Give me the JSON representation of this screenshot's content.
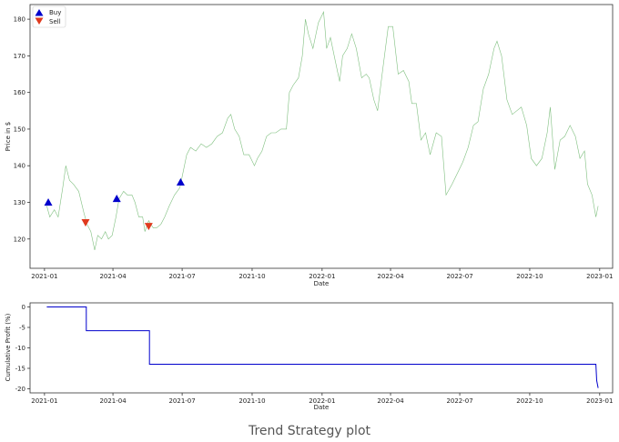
{
  "caption": "Trend Strategy plot",
  "chart_data": [
    {
      "type": "line",
      "xlabel": "Date",
      "ylabel": "Price in $",
      "xlim": [
        "2020-12-13",
        "2023-01-18"
      ],
      "ylim": [
        112,
        184
      ],
      "x_ticks": [
        "2021-01-01",
        "2021-04-01",
        "2021-07-01",
        "2021-10-01",
        "2022-01-01",
        "2022-04-01",
        "2022-07-01",
        "2022-10-01",
        "2023-01-01"
      ],
      "x_tick_labels": [
        "2021-01",
        "2021-04",
        "2021-07",
        "2021-10",
        "2022-01",
        "2022-04",
        "2022-07",
        "2022-10",
        "2023-01"
      ],
      "y_ticks": [
        120,
        130,
        140,
        150,
        160,
        170,
        180
      ],
      "line_color": "#7fbf7f",
      "legend_position": "upper-left",
      "series": [
        {
          "name": "Price",
          "points": [
            [
              "2021-01-04",
              129
            ],
            [
              "2021-01-08",
              126
            ],
            [
              "2021-01-14",
              128
            ],
            [
              "2021-01-19",
              126
            ],
            [
              "2021-01-25",
              134
            ],
            [
              "2021-01-29",
              140
            ],
            [
              "2021-02-03",
              136
            ],
            [
              "2021-02-08",
              135
            ],
            [
              "2021-02-15",
              133
            ],
            [
              "2021-02-22",
              127
            ],
            [
              "2021-02-26",
              124
            ],
            [
              "2021-03-03",
              122
            ],
            [
              "2021-03-08",
              117
            ],
            [
              "2021-03-12",
              121
            ],
            [
              "2021-03-17",
              120
            ],
            [
              "2021-03-22",
              122
            ],
            [
              "2021-03-26",
              120
            ],
            [
              "2021-03-31",
              121
            ],
            [
              "2021-04-05",
              126
            ],
            [
              "2021-04-09",
              131
            ],
            [
              "2021-04-15",
              133
            ],
            [
              "2021-04-20",
              132
            ],
            [
              "2021-04-26",
              132
            ],
            [
              "2021-04-30",
              130
            ],
            [
              "2021-05-05",
              126
            ],
            [
              "2021-05-10",
              126
            ],
            [
              "2021-05-13",
              122
            ],
            [
              "2021-05-18",
              125
            ],
            [
              "2021-05-24",
              123
            ],
            [
              "2021-05-28",
              123
            ],
            [
              "2021-06-03",
              124
            ],
            [
              "2021-06-08",
              126
            ],
            [
              "2021-06-14",
              129
            ],
            [
              "2021-06-21",
              132
            ],
            [
              "2021-06-28",
              134
            ],
            [
              "2021-07-01",
              137
            ],
            [
              "2021-07-07",
              143
            ],
            [
              "2021-07-12",
              145
            ],
            [
              "2021-07-19",
              144
            ],
            [
              "2021-07-26",
              146
            ],
            [
              "2021-08-02",
              145
            ],
            [
              "2021-08-09",
              146
            ],
            [
              "2021-08-16",
              148
            ],
            [
              "2021-08-23",
              149
            ],
            [
              "2021-08-30",
              153
            ],
            [
              "2021-09-03",
              154
            ],
            [
              "2021-09-08",
              150
            ],
            [
              "2021-09-14",
              148
            ],
            [
              "2021-09-20",
              143
            ],
            [
              "2021-09-27",
              143
            ],
            [
              "2021-10-04",
              140
            ],
            [
              "2021-10-08",
              142
            ],
            [
              "2021-10-14",
              144
            ],
            [
              "2021-10-20",
              148
            ],
            [
              "2021-10-26",
              149
            ],
            [
              "2021-11-01",
              149
            ],
            [
              "2021-11-08",
              150
            ],
            [
              "2021-11-15",
              150
            ],
            [
              "2021-11-19",
              160
            ],
            [
              "2021-11-24",
              162
            ],
            [
              "2021-12-01",
              164
            ],
            [
              "2021-12-06",
              170
            ],
            [
              "2021-12-10",
              180
            ],
            [
              "2021-12-14",
              176
            ],
            [
              "2021-12-20",
              172
            ],
            [
              "2021-12-27",
              179
            ],
            [
              "2022-01-03",
              182
            ],
            [
              "2022-01-07",
              172
            ],
            [
              "2022-01-12",
              175
            ],
            [
              "2022-01-18",
              169
            ],
            [
              "2022-01-24",
              163
            ],
            [
              "2022-01-28",
              170
            ],
            [
              "2022-02-03",
              172
            ],
            [
              "2022-02-09",
              176
            ],
            [
              "2022-02-15",
              172
            ],
            [
              "2022-02-22",
              164
            ],
            [
              "2022-02-28",
              165
            ],
            [
              "2022-03-04",
              164
            ],
            [
              "2022-03-10",
              158
            ],
            [
              "2022-03-15",
              155
            ],
            [
              "2022-03-21",
              165
            ],
            [
              "2022-03-29",
              178
            ],
            [
              "2022-04-04",
              178
            ],
            [
              "2022-04-11",
              165
            ],
            [
              "2022-04-18",
              166
            ],
            [
              "2022-04-25",
              163
            ],
            [
              "2022-04-29",
              157
            ],
            [
              "2022-05-05",
              157
            ],
            [
              "2022-05-11",
              147
            ],
            [
              "2022-05-17",
              149
            ],
            [
              "2022-05-23",
              143
            ],
            [
              "2022-05-31",
              149
            ],
            [
              "2022-06-07",
              148
            ],
            [
              "2022-06-13",
              132
            ],
            [
              "2022-06-21",
              135
            ],
            [
              "2022-06-28",
              138
            ],
            [
              "2022-07-05",
              141
            ],
            [
              "2022-07-12",
              145
            ],
            [
              "2022-07-19",
              151
            ],
            [
              "2022-07-25",
              152
            ],
            [
              "2022-08-01",
              161
            ],
            [
              "2022-08-08",
              165
            ],
            [
              "2022-08-15",
              172
            ],
            [
              "2022-08-19",
              174
            ],
            [
              "2022-08-25",
              170
            ],
            [
              "2022-09-01",
              158
            ],
            [
              "2022-09-08",
              154
            ],
            [
              "2022-09-14",
              155
            ],
            [
              "2022-09-20",
              156
            ],
            [
              "2022-09-27",
              151
            ],
            [
              "2022-10-03",
              142
            ],
            [
              "2022-10-10",
              140
            ],
            [
              "2022-10-17",
              142
            ],
            [
              "2022-10-24",
              149
            ],
            [
              "2022-10-28",
              156
            ],
            [
              "2022-11-03",
              139
            ],
            [
              "2022-11-10",
              147
            ],
            [
              "2022-11-16",
              148
            ],
            [
              "2022-11-23",
              151
            ],
            [
              "2022-11-30",
              148
            ],
            [
              "2022-12-06",
              142
            ],
            [
              "2022-12-12",
              144
            ],
            [
              "2022-12-16",
              135
            ],
            [
              "2022-12-22",
              132
            ],
            [
              "2022-12-27",
              126
            ],
            [
              "2022-12-30",
              129
            ]
          ]
        },
        {
          "name": "Buy",
          "marker": "triangle-up",
          "color": "#0000cc",
          "points": [
            [
              "2021-01-06",
              130
            ],
            [
              "2021-04-06",
              131
            ],
            [
              "2021-06-29",
              135.5
            ]
          ]
        },
        {
          "name": "Sell",
          "marker": "triangle-down",
          "color": "#e03a1e",
          "points": [
            [
              "2021-02-24",
              124.5
            ],
            [
              "2021-05-18",
              123.5
            ]
          ]
        }
      ]
    },
    {
      "type": "line",
      "xlabel": "Date",
      "ylabel": "Cumulative Profit (%)",
      "xlim": [
        "2020-12-13",
        "2023-01-18"
      ],
      "ylim": [
        -21,
        1
      ],
      "x_ticks": [
        "2021-01-01",
        "2021-04-01",
        "2021-07-01",
        "2021-10-01",
        "2022-01-01",
        "2022-04-01",
        "2022-07-01",
        "2022-10-01",
        "2023-01-01"
      ],
      "x_tick_labels": [
        "2021-01",
        "2021-04",
        "2021-07",
        "2021-10",
        "2022-01",
        "2022-04",
        "2022-07",
        "2022-10",
        "2023-01"
      ],
      "y_ticks": [
        0,
        -5,
        -10,
        -15,
        -20
      ],
      "line_color": "#0000cc",
      "series": [
        {
          "points": [
            [
              "2021-01-04",
              0
            ],
            [
              "2021-02-25",
              0
            ],
            [
              "2021-02-25",
              -5.8
            ],
            [
              "2021-05-19",
              -5.8
            ],
            [
              "2021-05-19",
              -14
            ],
            [
              "2022-12-27",
              -14
            ],
            [
              "2022-12-28",
              -18
            ],
            [
              "2022-12-30",
              -19.8
            ]
          ]
        }
      ]
    }
  ]
}
